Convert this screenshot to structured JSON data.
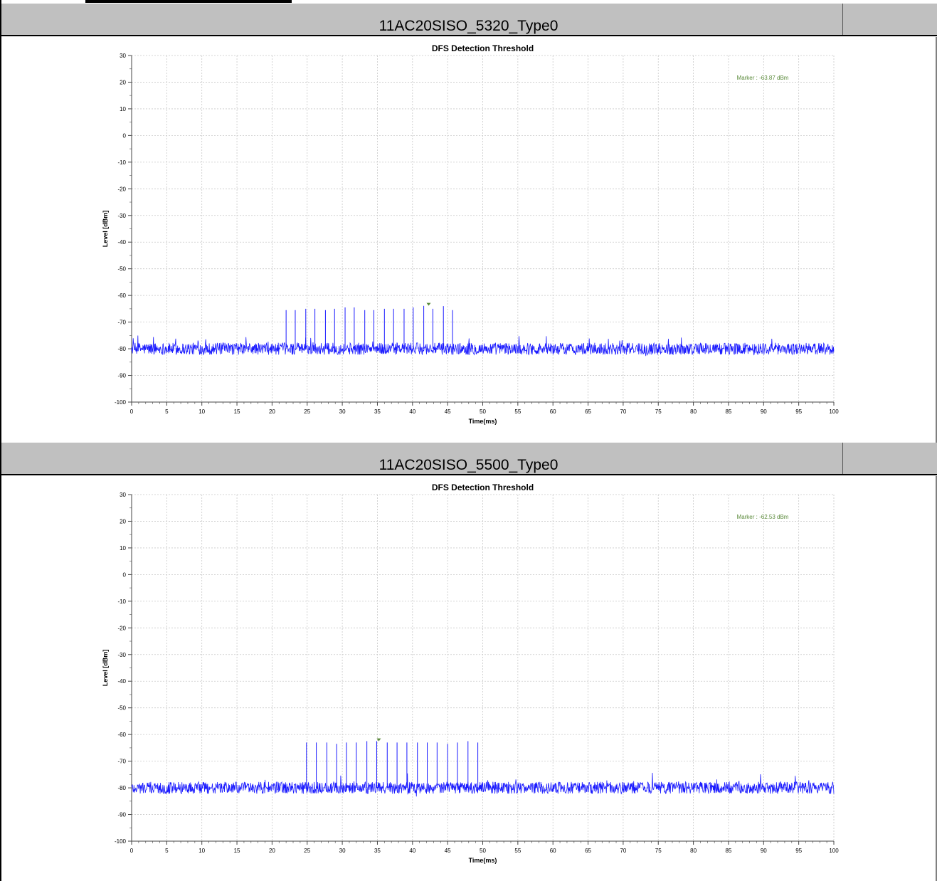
{
  "charts_meta": {
    "trace_color": "#1a1aff",
    "marker_color": "#5a8a3a",
    "grid_color": "#c8c8c8"
  },
  "chart_data": [
    {
      "type": "line",
      "section_header": "11AC20SISO_5320_Type0",
      "title": "DFS Detection Threshold",
      "xlabel": "Time(ms)",
      "ylabel": "Level [dBm]",
      "xlim": [
        0,
        100
      ],
      "ylim": [
        -100,
        30
      ],
      "x_ticks": [
        0,
        5,
        10,
        15,
        20,
        25,
        30,
        35,
        40,
        45,
        50,
        55,
        60,
        65,
        70,
        75,
        80,
        85,
        90,
        95,
        100
      ],
      "y_ticks": [
        30,
        20,
        10,
        0,
        -10,
        -20,
        -30,
        -40,
        -50,
        -60,
        -70,
        -80,
        -90,
        -100
      ],
      "grid": true,
      "noise_floor_dbm": -80,
      "pulse_times_ms": [
        22,
        23.3,
        24.8,
        26.1,
        27.6,
        28.9,
        30.4,
        31.7,
        33.2,
        34.5,
        36,
        37.3,
        38.8,
        40.1,
        41.6,
        42.9,
        44.4,
        45.7
      ],
      "pulse_levels_dbm": [
        -65.5,
        -65.5,
        -65,
        -65,
        -65.5,
        -65,
        -64.5,
        -64.5,
        -65.5,
        -65.5,
        -65,
        -65,
        -65,
        -64.5,
        -63.9,
        -65,
        -64,
        -65.5
      ],
      "marker": {
        "x": 42.3,
        "y": -63.87,
        "label": "Marker : -63.87 dBm"
      }
    },
    {
      "type": "line",
      "section_header": "11AC20SISO_5500_Type0",
      "title": "DFS Detection Threshold",
      "xlabel": "Time(ms)",
      "ylabel": "Level [dBm]",
      "xlim": [
        0,
        100
      ],
      "ylim": [
        -100,
        30
      ],
      "x_ticks": [
        0,
        5,
        10,
        15,
        20,
        25,
        30,
        35,
        40,
        45,
        50,
        55,
        60,
        65,
        70,
        75,
        80,
        85,
        90,
        95,
        100
      ],
      "y_ticks": [
        30,
        20,
        10,
        0,
        -10,
        -20,
        -30,
        -40,
        -50,
        -60,
        -70,
        -80,
        -90,
        -100
      ],
      "grid": true,
      "noise_floor_dbm": -80,
      "pulse_times_ms": [
        24.9,
        26.3,
        27.8,
        29.2,
        30.6,
        32,
        33.5,
        34.9,
        36.4,
        37.8,
        39.2,
        40.7,
        42.1,
        43.5,
        45,
        46.4,
        47.9,
        49.3
      ],
      "pulse_levels_dbm": [
        -63,
        -63,
        -63,
        -63.5,
        -63,
        -63,
        -62.5,
        -62.5,
        -63,
        -63,
        -63,
        -63,
        -63,
        -63,
        -63.5,
        -63,
        -62.5,
        -63
      ],
      "marker": {
        "x": 35.2,
        "y": -62.53,
        "label": "Marker : -62.53 dBm"
      }
    }
  ]
}
